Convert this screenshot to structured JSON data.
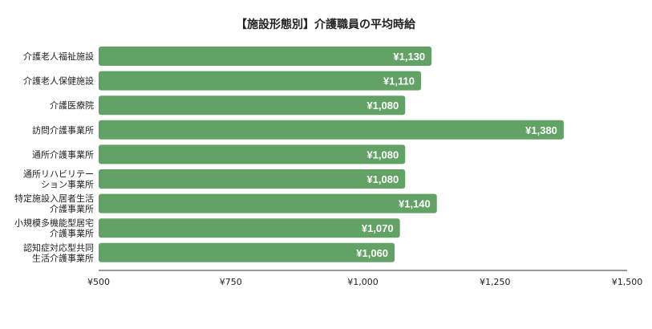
{
  "chart_data": {
    "type": "bar",
    "orientation": "horizontal",
    "title": "【施設形態別】介護職員の平均時給",
    "xlabel": "",
    "ylabel": "",
    "categories": [
      [
        "介護老人福祉施設"
      ],
      [
        "介護老人保健施設"
      ],
      [
        "介護医療院"
      ],
      [
        "訪問介護事業所"
      ],
      [
        "通所介護事業所"
      ],
      [
        "通所リハビリテー",
        "ション事業所"
      ],
      [
        "特定施設入居者生活",
        "介護事業所"
      ],
      [
        "小規模多機能型居宅",
        "介護事業所"
      ],
      [
        "認知症対応型共同",
        "生活介護事業所"
      ]
    ],
    "values": [
      1130,
      1110,
      1080,
      1380,
      1080,
      1080,
      1140,
      1070,
      1060
    ],
    "data_labels": [
      "¥1,130",
      "¥1,110",
      "¥1,080",
      "¥1,380",
      "¥1,080",
      "¥1,080",
      "¥1,140",
      "¥1,070",
      "¥1,060"
    ],
    "xlim": [
      500,
      1500
    ],
    "xticks": [
      500,
      750,
      1000,
      1250,
      1500
    ],
    "xtick_labels": [
      "¥500",
      "¥750",
      "¥1,000",
      "¥1,250",
      "¥1,500"
    ],
    "grid": false,
    "legend": "none",
    "bar_color": "#62a365",
    "axis_color": "#333333"
  }
}
